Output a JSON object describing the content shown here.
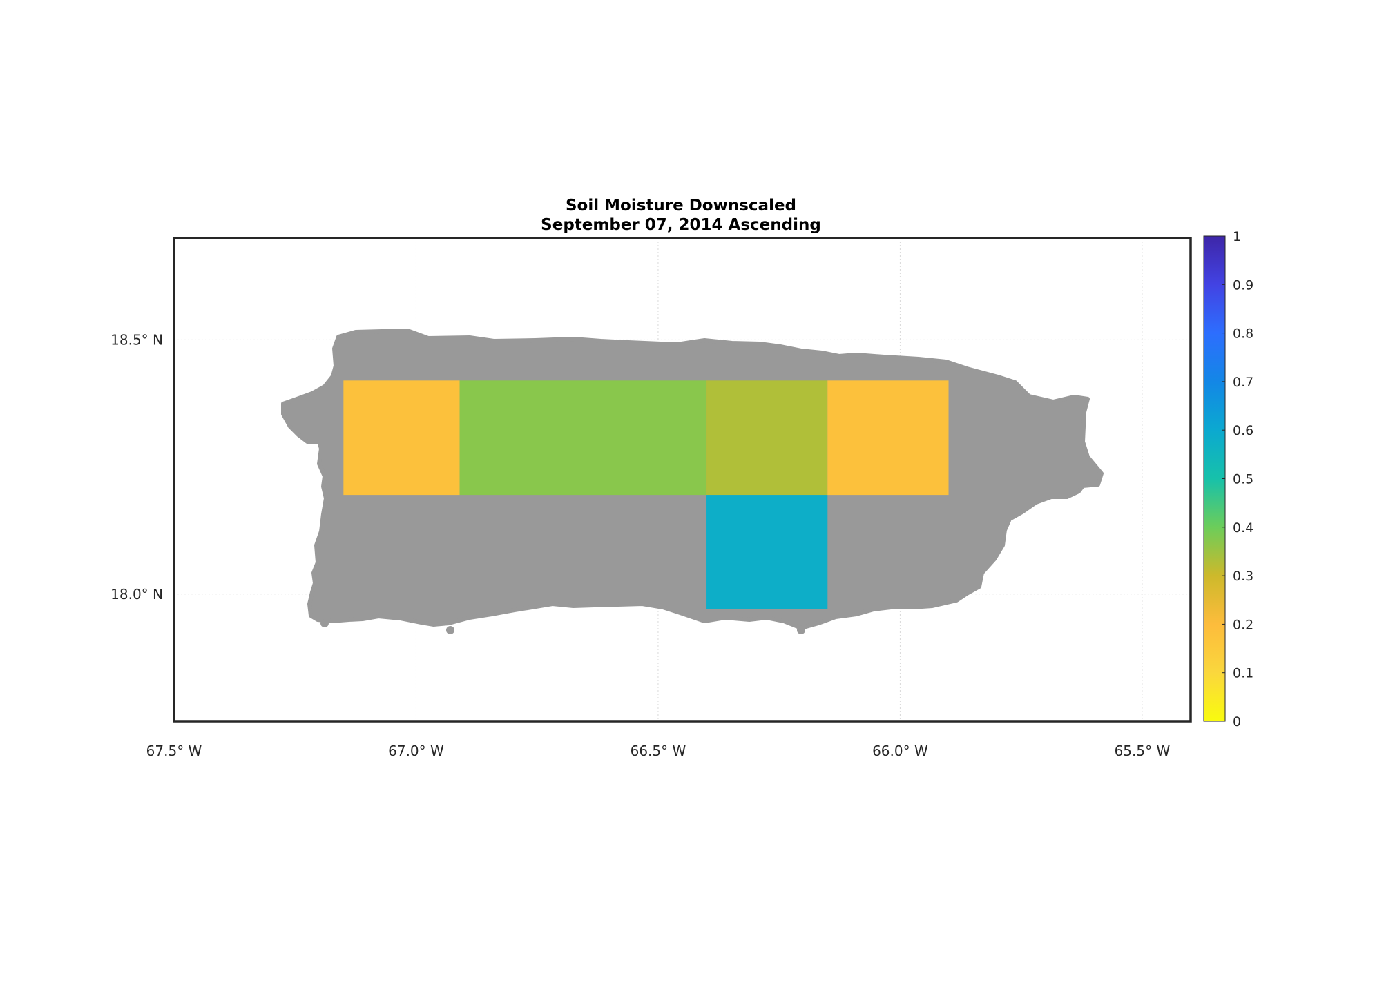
{
  "title": {
    "line1": "Soil Moisture Downscaled",
    "line2": "September 07, 2014 Ascending"
  },
  "map": {
    "lon_range": [
      -67.5,
      -65.4
    ],
    "lat_range": [
      17.75,
      18.7
    ],
    "lon_ticks": [
      {
        "value": -67.5,
        "label": "67.5° W"
      },
      {
        "value": -67.0,
        "label": "67.0° W"
      },
      {
        "value": -66.5,
        "label": "66.5° W"
      },
      {
        "value": -66.0,
        "label": "66.0° W"
      },
      {
        "value": -65.5,
        "label": "65.5° W"
      }
    ],
    "lat_ticks": [
      {
        "value": 18.5,
        "label": "18.5° N"
      },
      {
        "value": 18.0,
        "label": "18.0° N"
      }
    ],
    "grid": true,
    "landmask_color": "#999999",
    "tiles": [
      {
        "name": "tile-west",
        "lon": [
          -67.15,
          -66.91
        ],
        "lat": [
          18.195,
          18.42
        ],
        "value": 0.18
      },
      {
        "name": "tile-central-west",
        "lon": [
          -66.91,
          -66.4
        ],
        "lat": [
          18.195,
          18.42
        ],
        "value": 0.37
      },
      {
        "name": "tile-central-east",
        "lon": [
          -66.4,
          -66.15
        ],
        "lat": [
          18.195,
          18.42
        ],
        "value": 0.33
      },
      {
        "name": "tile-south-central",
        "lon": [
          -66.4,
          -66.15
        ],
        "lat": [
          17.97,
          18.195
        ],
        "value": 0.58
      },
      {
        "name": "tile-east",
        "lon": [
          -66.15,
          -65.9
        ],
        "lat": [
          18.195,
          18.42
        ],
        "value": 0.18
      }
    ]
  },
  "colorbar": {
    "range": [
      0,
      1
    ],
    "ticks": [
      "0",
      "0.1",
      "0.2",
      "0.3",
      "0.4",
      "0.5",
      "0.6",
      "0.7",
      "0.8",
      "0.9",
      "1"
    ],
    "colormap": "parula-reversed"
  }
}
